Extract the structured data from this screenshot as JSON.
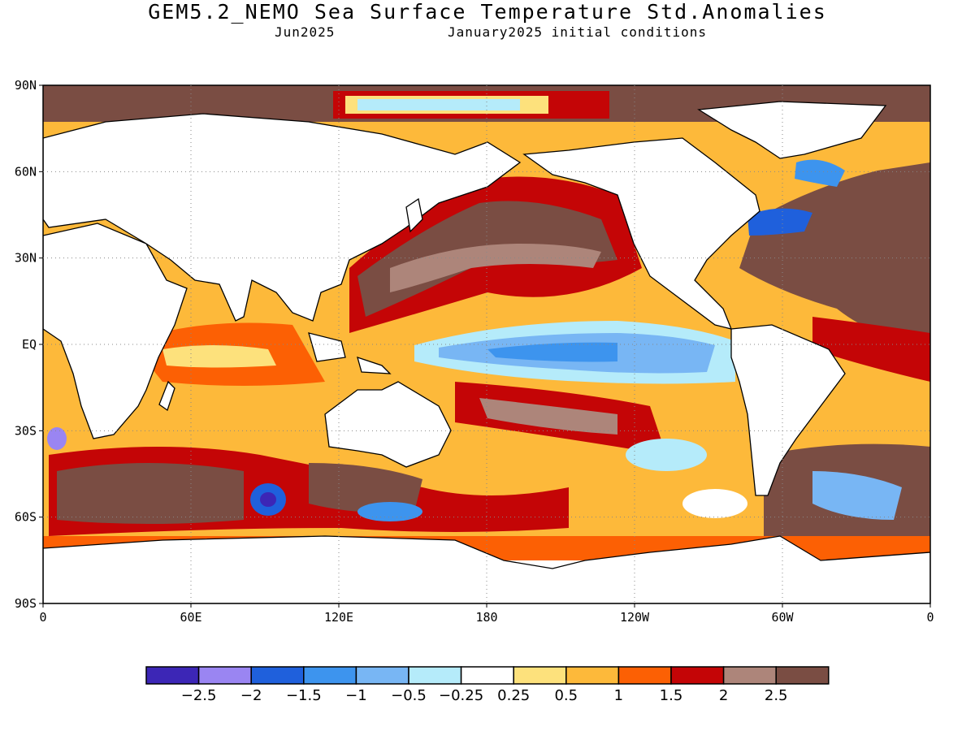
{
  "title": "GEM5.2_NEMO Sea Surface Temperature Std.Anomalies",
  "subtitle_left": "Jun2025",
  "subtitle_right": "January2025 initial conditions",
  "axes": {
    "lat_labels": [
      "90N",
      "60N",
      "30N",
      "EQ",
      "30S",
      "60S",
      "90S"
    ],
    "lon_labels": [
      "0",
      "60E",
      "120E",
      "180",
      "120W",
      "60W",
      "0"
    ],
    "lat_range": [
      -90,
      90
    ],
    "lon_range": [
      0,
      360
    ],
    "grid": "dotted"
  },
  "colorbar": {
    "colors": [
      "#3c26b6",
      "#9a85f2",
      "#1f60dc",
      "#3d94ee",
      "#78b6f4",
      "#b5ebfa",
      "#ffffff",
      "#fde17c",
      "#fdb93a",
      "#fc6004",
      "#c40506",
      "#ad857a",
      "#7a4d43"
    ],
    "labels": [
      "−2.5",
      "−2",
      "−1.5",
      "−1",
      "−0.5",
      "−0.25",
      "0.25",
      "0.5",
      "1",
      "1.5",
      "2",
      "2.5"
    ]
  },
  "colors": {
    "land": "#ffffff",
    "coastline": "#000000"
  }
}
